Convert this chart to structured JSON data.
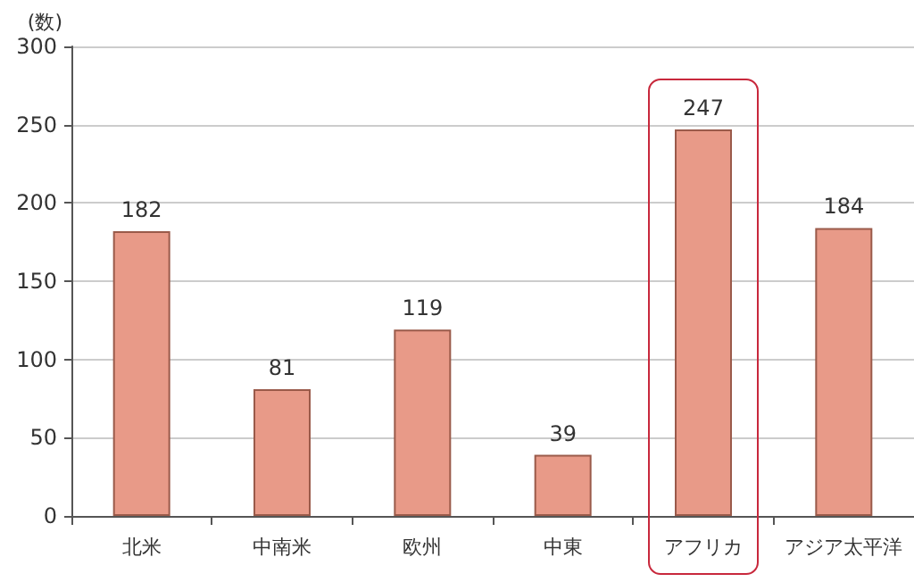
{
  "chart_data": {
    "type": "bar",
    "ylabel": "(数)",
    "categories": [
      "北米",
      "中南米",
      "欧州",
      "中東",
      "アフリカ",
      "アジア太平洋"
    ],
    "values": [
      182,
      81,
      119,
      39,
      247,
      184
    ],
    "color": "#e89a88",
    "data_labels": true,
    "ylim": [
      0,
      300
    ],
    "yticks": [
      0,
      50,
      100,
      150,
      200,
      250,
      300
    ],
    "grid": "y"
  }
}
